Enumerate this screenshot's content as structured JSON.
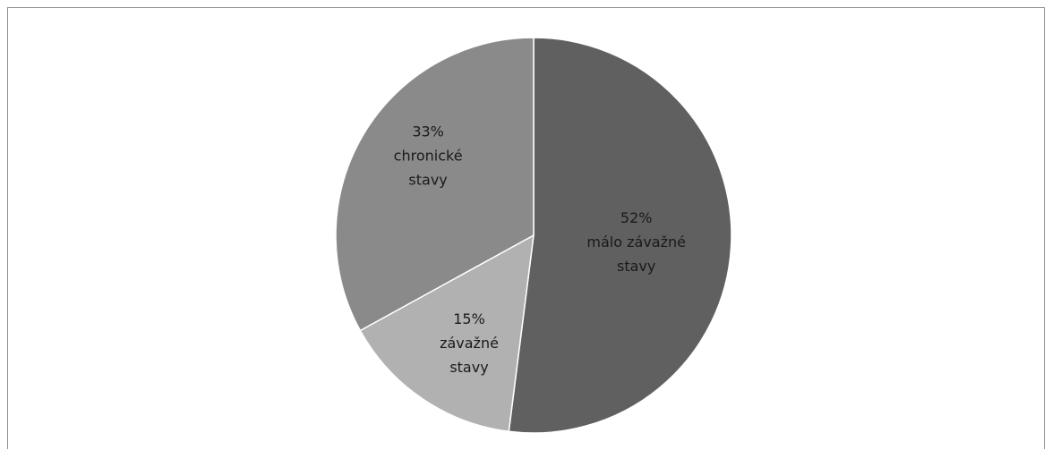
{
  "chart_data": {
    "type": "pie",
    "slices": [
      {
        "percent_label": "52%",
        "category": "málo závažné stavy",
        "label_lines": [
          "málo závažné",
          "stavy"
        ],
        "value": 52,
        "color": "#606060"
      },
      {
        "percent_label": "15%",
        "category": "závažné stavy",
        "label_lines": [
          "závažné",
          "stavy"
        ],
        "value": 15,
        "color": "#b1b1b1"
      },
      {
        "percent_label": "33%",
        "category": "chronické stavy",
        "label_lines": [
          "chronické",
          "stavy"
        ],
        "value": 33,
        "color": "#8a8a8a"
      }
    ],
    "start_angle_deg": 0,
    "direction": "clockwise",
    "legend": "none",
    "slice_border_color": "#ffffff"
  }
}
